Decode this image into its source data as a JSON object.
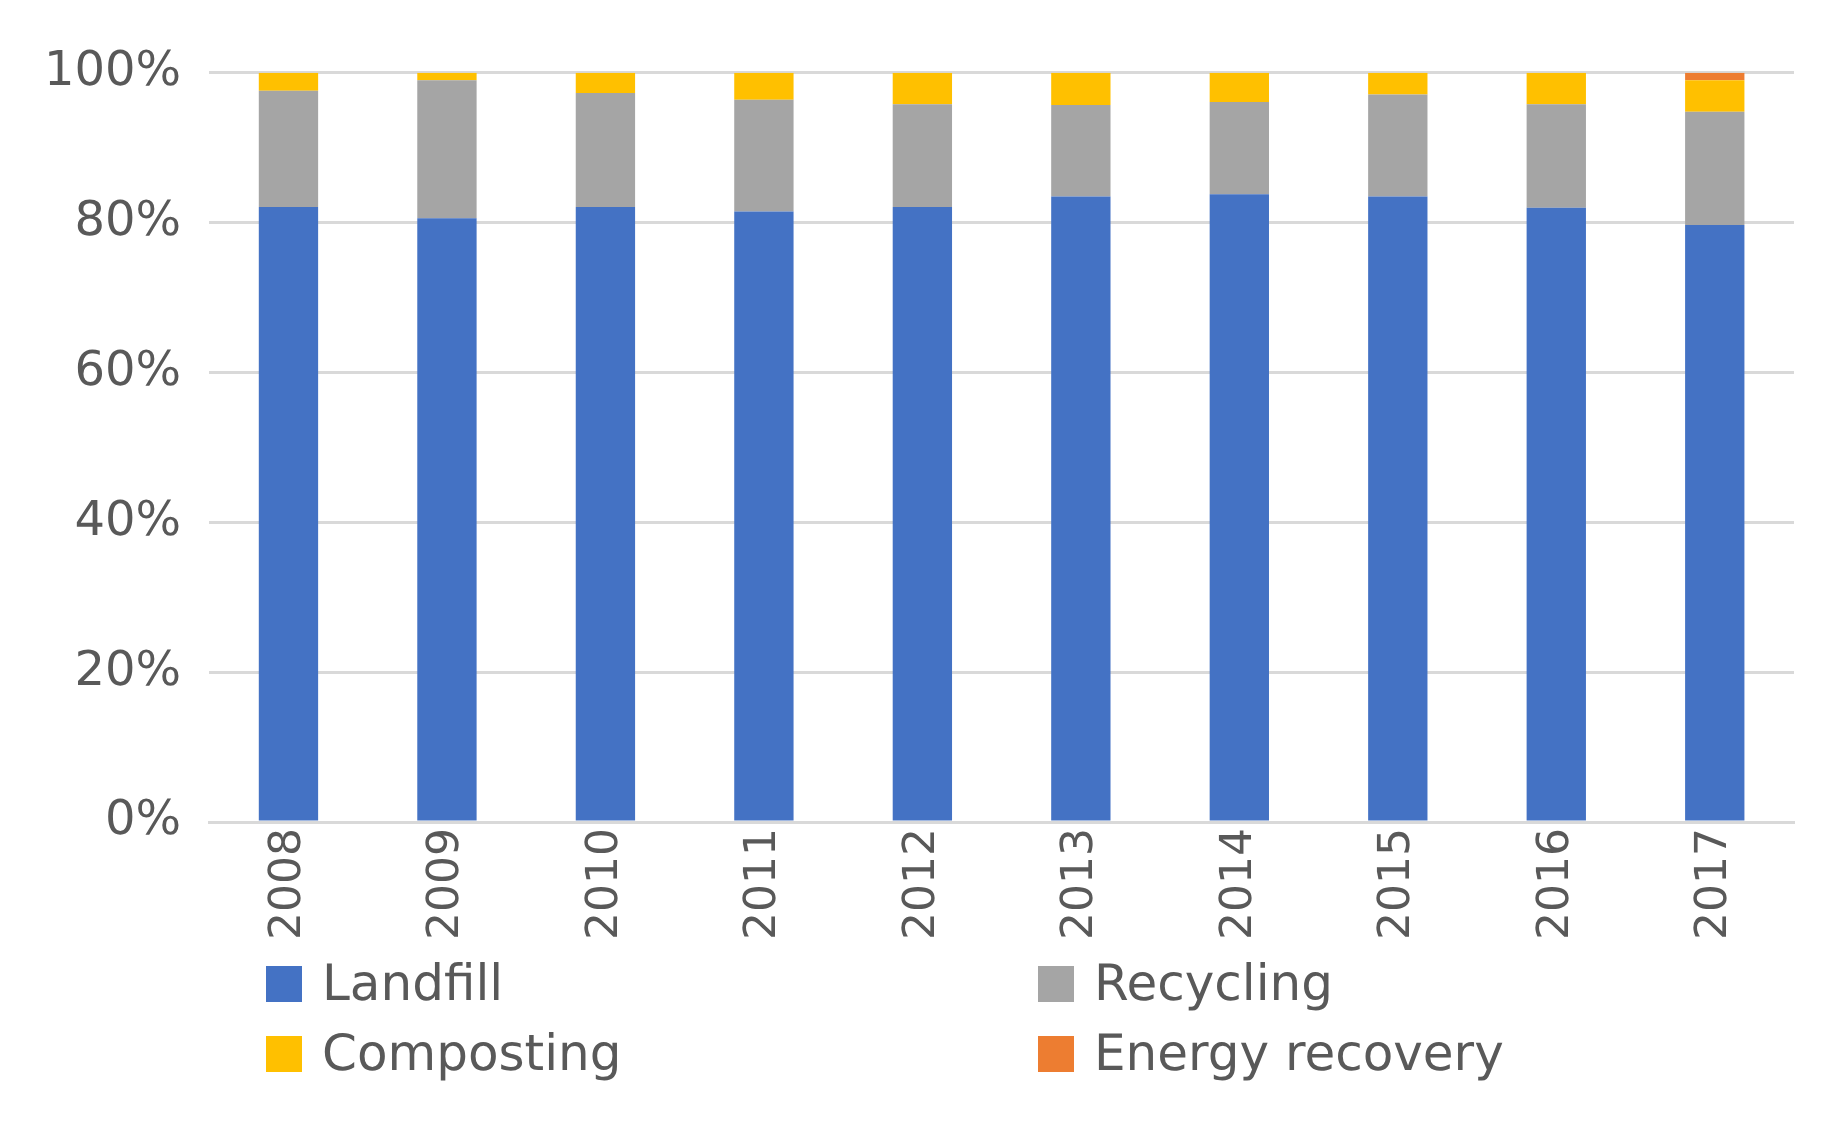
{
  "chart_data": {
    "type": "bar",
    "stacked": true,
    "categories": [
      "2008",
      "2009",
      "2010",
      "2011",
      "2012",
      "2013",
      "2014",
      "2015",
      "2016",
      "2017"
    ],
    "series": [
      {
        "name": "Landfill",
        "color": "#4472c4",
        "values": [
          82.1,
          80.6,
          82.1,
          81.5,
          82.1,
          83.5,
          83.8,
          83.5,
          82.0,
          79.7
        ]
      },
      {
        "name": "Recycling",
        "color": "#a5a5a5",
        "values": [
          15.5,
          18.4,
          15.2,
          14.9,
          13.7,
          12.2,
          12.3,
          13.6,
          13.8,
          15.1
        ]
      },
      {
        "name": "Composting",
        "color": "#ffc000",
        "values": [
          2.4,
          1.0,
          2.7,
          3.6,
          4.2,
          4.3,
          3.9,
          2.9,
          4.2,
          4.2
        ]
      },
      {
        "name": "Energy recovery",
        "color": "#ed7d31",
        "values": [
          null,
          null,
          null,
          null,
          null,
          null,
          null,
          null,
          null,
          1.0
        ]
      }
    ],
    "ylim": [
      0,
      100
    ],
    "yticks": [
      {
        "value": 0,
        "label": "0%"
      },
      {
        "value": 20,
        "label": "20%"
      },
      {
        "value": 40,
        "label": "40%"
      },
      {
        "value": 60,
        "label": "60%"
      },
      {
        "value": 80,
        "label": "80%"
      },
      {
        "value": 100,
        "label": "100%"
      }
    ],
    "grid": "y",
    "legend": "bottom"
  }
}
